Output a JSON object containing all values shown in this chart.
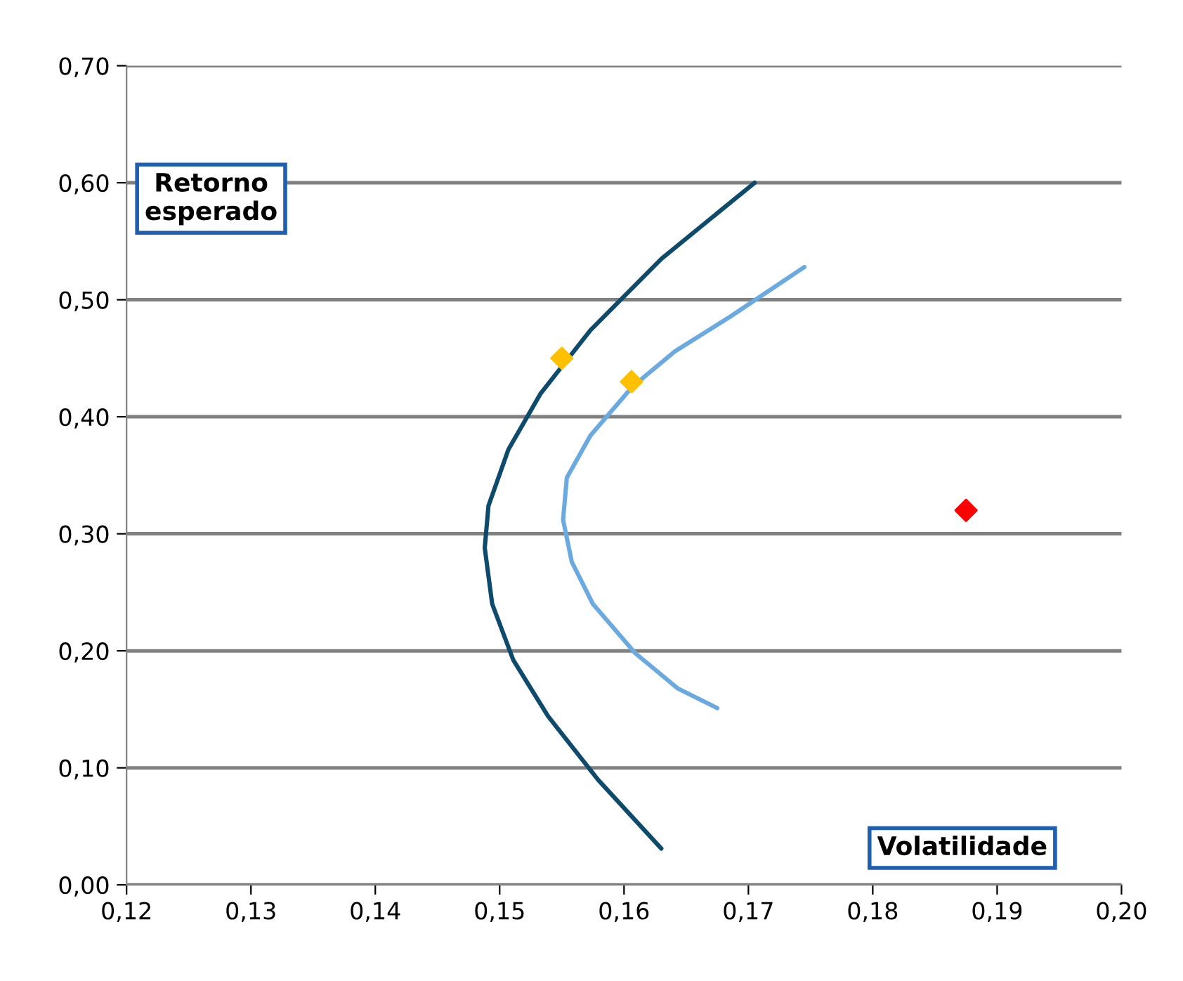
{
  "chart_data": {
    "type": "line",
    "xlabel": "Volatilidade",
    "ylabel": "Retorno esperado",
    "xlim": [
      0.12,
      0.2
    ],
    "ylim": [
      0,
      0.7
    ],
    "xticks": [
      {
        "value": 0.12,
        "label": "0,12"
      },
      {
        "value": 0.13,
        "label": "0,13"
      },
      {
        "value": 0.14,
        "label": "0,14"
      },
      {
        "value": 0.15,
        "label": "0,15"
      },
      {
        "value": 0.16,
        "label": "0,16"
      },
      {
        "value": 0.17,
        "label": "0,17"
      },
      {
        "value": 0.18,
        "label": "0,18"
      },
      {
        "value": 0.19,
        "label": "0,19"
      },
      {
        "value": 0.2,
        "label": "0,20"
      }
    ],
    "yticks": [
      {
        "value": 0,
        "label": "0,00"
      },
      {
        "value": 0.1,
        "label": "0,10"
      },
      {
        "value": 0.2,
        "label": "0,20"
      },
      {
        "value": 0.3,
        "label": "0,30"
      },
      {
        "value": 0.4,
        "label": "0,40"
      },
      {
        "value": 0.5,
        "label": "0,50"
      },
      {
        "value": 0.6,
        "label": "0,60"
      },
      {
        "value": 0.7,
        "label": "0,70"
      }
    ],
    "grid": "y",
    "legend": false,
    "series": [
      {
        "marker": "none",
        "color": "#0d4a6b",
        "x": [
          0.1705,
          0.163,
          0.1573,
          0.1533,
          0.1507,
          0.1491,
          0.1488,
          0.1494,
          0.1511,
          0.1539,
          0.1579,
          0.163
        ],
        "values": [
          0.6,
          0.535,
          0.474,
          0.42,
          0.372,
          0.324,
          0.288,
          0.24,
          0.192,
          0.144,
          0.09,
          0.031
        ]
      },
      {
        "marker": "none",
        "color": "#6aaae0",
        "x": [
          0.1745,
          0.1686,
          0.1641,
          0.1607,
          0.1573,
          0.1554,
          0.1551,
          0.1558,
          0.1575,
          0.1609,
          0.1643,
          0.1675
        ],
        "values": [
          0.528,
          0.486,
          0.456,
          0.426,
          0.384,
          0.348,
          0.312,
          0.276,
          0.24,
          0.198,
          0.168,
          0.151
        ]
      },
      {
        "type": "scatter",
        "marker": "diamond",
        "color": "#ffc000",
        "x": [
          0.155,
          0.1606
        ],
        "values": [
          0.45,
          0.43
        ]
      },
      {
        "type": "scatter",
        "marker": "diamond",
        "color": "#ff0000",
        "x": [
          0.1875
        ],
        "values": [
          0.32
        ]
      }
    ]
  }
}
